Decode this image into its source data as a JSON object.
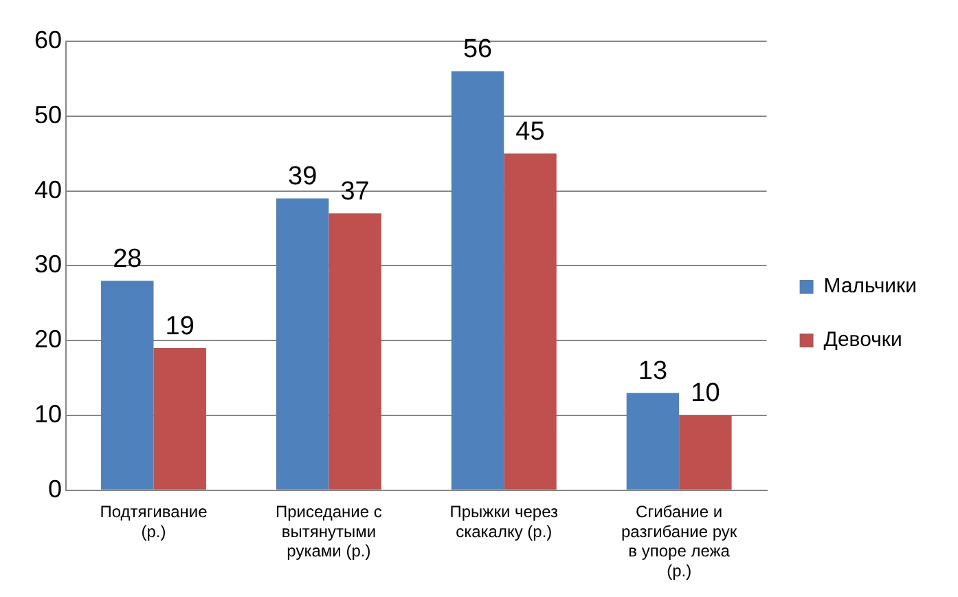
{
  "chart_data": {
    "type": "bar",
    "categories": [
      "Подтягивание (р.)",
      "Приседание с вытянутыми руками (р.)",
      "Прыжки через скакалку (р.)",
      "Сгибание и разгибание рук в упоре лежа (р.)"
    ],
    "series": [
      {
        "name": "Мальчики",
        "color": "#4f81bd",
        "values": [
          28,
          39,
          56,
          13
        ]
      },
      {
        "name": "Девочки",
        "color": "#c0504d",
        "values": [
          19,
          37,
          45,
          10
        ]
      }
    ],
    "ylim": [
      0,
      60
    ],
    "yticks": [
      0,
      10,
      20,
      30,
      40,
      50,
      60
    ],
    "grid": "y",
    "legend": "right",
    "data_labels": true
  }
}
